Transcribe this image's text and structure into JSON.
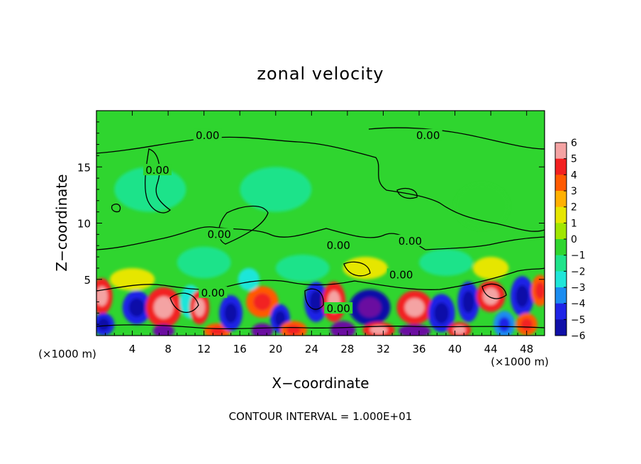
{
  "chart_data": {
    "type": "heatmap",
    "title": "zonal velocity",
    "xlabel": "X−coordinate",
    "ylabel": "Z−coordinate",
    "x_unit_left": "(×1000 m)",
    "x_unit_right": "(×1000 m)",
    "footer": "CONTOUR INTERVAL = 1.000E+01",
    "xlim": [
      0,
      50
    ],
    "ylim": [
      0,
      20
    ],
    "x_ticks": [
      4,
      8,
      12,
      16,
      20,
      24,
      28,
      32,
      36,
      40,
      44,
      48
    ],
    "x_tick_labels": [
      "4",
      "8",
      "12",
      "16",
      "20",
      "24",
      "28",
      "32",
      "36",
      "40",
      "44",
      "48"
    ],
    "y_ticks": [
      5,
      10,
      15
    ],
    "y_tick_labels": [
      "5",
      "10",
      "15"
    ],
    "colorbar": {
      "levels": [
        6,
        5,
        4,
        3,
        2,
        1,
        0,
        -1,
        -2,
        -3,
        -4,
        -5,
        -6
      ],
      "labels": [
        "6",
        "5",
        "4",
        "3",
        "2",
        "1",
        "0",
        "−1",
        "−2",
        "−3",
        "−4",
        "−5",
        "−6"
      ],
      "colors": [
        "#f4a3a3",
        "#f22020",
        "#ff5a00",
        "#ffb000",
        "#e6e600",
        "#a0e600",
        "#2fd52f",
        "#1fe38a",
        "#1fe6d9",
        "#1b8cf0",
        "#1f24e6",
        "#1010a8",
        "#6a10a0"
      ]
    },
    "contour_labels": [
      {
        "text": "0.00",
        "x": 12.4,
        "z": 17.8
      },
      {
        "text": "0.00",
        "x": 37.0,
        "z": 17.8
      },
      {
        "text": "0.00",
        "x": 6.8,
        "z": 14.7
      },
      {
        "text": "0.00",
        "x": 13.7,
        "z": 9.0
      },
      {
        "text": "0.00",
        "x": 27.0,
        "z": 8.0
      },
      {
        "text": "0.00",
        "x": 35.0,
        "z": 8.4
      },
      {
        "text": "0.00",
        "x": 34.0,
        "z": 5.4
      },
      {
        "text": "0.00",
        "x": 13.0,
        "z": 3.8
      },
      {
        "text": "0.00",
        "x": 27.0,
        "z": 2.4
      }
    ],
    "blobs": [
      {
        "x": 0.6,
        "z": 3.5,
        "v": 4.5,
        "rx": 1.2,
        "rz": 1.6
      },
      {
        "x": 0.8,
        "z": 1.0,
        "v": -4,
        "rx": 1.2,
        "rz": 1.0
      },
      {
        "x": 4.5,
        "z": 2.5,
        "v": -4,
        "rx": 1.6,
        "rz": 1.5
      },
      {
        "x": 7.5,
        "z": 2.5,
        "v": 5,
        "rx": 2.0,
        "rz": 1.8
      },
      {
        "x": 7.5,
        "z": 0.4,
        "v": -6,
        "rx": 1.2,
        "rz": 0.6
      },
      {
        "x": 10.5,
        "z": 3.0,
        "v": -2.5,
        "rx": 1.2,
        "rz": 1.5
      },
      {
        "x": 11.5,
        "z": 2.5,
        "v": 4.5,
        "rx": 1.1,
        "rz": 1.5
      },
      {
        "x": 13.5,
        "z": 0.4,
        "v": 4,
        "rx": 1.5,
        "rz": 0.7
      },
      {
        "x": 15.0,
        "z": 2.0,
        "v": -4,
        "rx": 1.3,
        "rz": 1.6
      },
      {
        "x": 18.5,
        "z": 3.0,
        "v": 4,
        "rx": 1.8,
        "rz": 1.4
      },
      {
        "x": 18.5,
        "z": 0.4,
        "v": -6,
        "rx": 1.2,
        "rz": 0.7
      },
      {
        "x": 17.0,
        "z": 5.0,
        "v": -2,
        "rx": 1.2,
        "rz": 1.0
      },
      {
        "x": 20.5,
        "z": 1.5,
        "v": -4,
        "rx": 1.1,
        "rz": 1.3
      },
      {
        "x": 22.0,
        "z": 0.5,
        "v": 4,
        "rx": 1.5,
        "rz": 0.8
      },
      {
        "x": 24.5,
        "z": 3.0,
        "v": -4.5,
        "rx": 1.3,
        "rz": 1.8
      },
      {
        "x": 26.5,
        "z": 3.0,
        "v": 5,
        "rx": 1.3,
        "rz": 1.8
      },
      {
        "x": 27.5,
        "z": 0.5,
        "v": -6,
        "rx": 1.4,
        "rz": 0.8
      },
      {
        "x": 30.5,
        "z": 2.5,
        "v": -5,
        "rx": 2.3,
        "rz": 1.6
      },
      {
        "x": 31.5,
        "z": 0.5,
        "v": 5,
        "rx": 1.8,
        "rz": 0.7
      },
      {
        "x": 35.5,
        "z": 2.5,
        "v": 4.5,
        "rx": 2.0,
        "rz": 1.5
      },
      {
        "x": 35.5,
        "z": 0.4,
        "v": -6,
        "rx": 1.8,
        "rz": 0.6
      },
      {
        "x": 38.5,
        "z": 2.0,
        "v": -4,
        "rx": 1.5,
        "rz": 1.7
      },
      {
        "x": 40.5,
        "z": 0.5,
        "v": 5,
        "rx": 1.3,
        "rz": 0.7
      },
      {
        "x": 41.5,
        "z": 3.0,
        "v": -4,
        "rx": 1.2,
        "rz": 1.8
      },
      {
        "x": 44.0,
        "z": 3.5,
        "v": 5,
        "rx": 1.6,
        "rz": 1.4
      },
      {
        "x": 45.5,
        "z": 1.0,
        "v": -3.5,
        "rx": 1.2,
        "rz": 1.2
      },
      {
        "x": 47.5,
        "z": 3.5,
        "v": -4.5,
        "rx": 1.3,
        "rz": 1.8
      },
      {
        "x": 48.0,
        "z": 1.0,
        "v": 4,
        "rx": 1.2,
        "rz": 1.0
      },
      {
        "x": 49.5,
        "z": 4.0,
        "v": 3.5,
        "rx": 1.0,
        "rz": 1.4
      },
      {
        "x": 4.0,
        "z": 5.0,
        "v": 2,
        "rx": 2.5,
        "rz": 1.0
      },
      {
        "x": 12.0,
        "z": 6.5,
        "v": -1.2,
        "rx": 3.0,
        "rz": 1.4
      },
      {
        "x": 23.0,
        "z": 6.0,
        "v": -1.5,
        "rx": 3.0,
        "rz": 1.2
      },
      {
        "x": 30.0,
        "z": 6.0,
        "v": 1.8,
        "rx": 2.5,
        "rz": 1.0
      },
      {
        "x": 39.0,
        "z": 6.5,
        "v": -1.0,
        "rx": 3.0,
        "rz": 1.2
      },
      {
        "x": 44.0,
        "z": 6.0,
        "v": 1.5,
        "rx": 2.0,
        "rz": 1.0
      },
      {
        "x": 6.0,
        "z": 13.0,
        "v": -0.6,
        "rx": 4.0,
        "rz": 2.0
      },
      {
        "x": 20.0,
        "z": 13.0,
        "v": -0.6,
        "rx": 4.0,
        "rz": 2.0
      },
      {
        "x": 43.0,
        "z": 11.5,
        "v": -0.5,
        "rx": 3.0,
        "rz": 2.0
      }
    ]
  }
}
